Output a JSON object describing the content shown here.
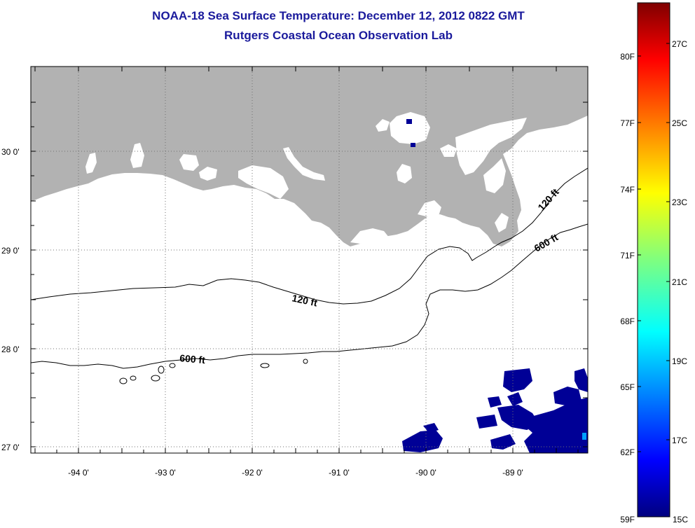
{
  "header": {
    "title": "NOAA-18 Sea Surface Temperature:  December 12, 2012 0822 GMT",
    "subtitle": "Rutgers Coastal Ocean Observation Lab"
  },
  "map": {
    "lon_labels": [
      "-94 0'",
      "-93 0'",
      "-92 0'",
      "-91 0'",
      "-90 0'",
      "-89 0'"
    ],
    "lat_labels": [
      "30 0'",
      "29 0'",
      "28 0'",
      "27 0'"
    ],
    "contour_labels": [
      {
        "id": "label-120ft-west",
        "text": "120 ft"
      },
      {
        "id": "label-600ft-west",
        "text": "600 ft"
      },
      {
        "id": "label-120ft-east",
        "text": "120 ft"
      },
      {
        "id": "label-600ft-east",
        "text": "600 ft"
      }
    ],
    "colors": {
      "land": "#b2b2b2",
      "cold_water": "#000096",
      "contour": "#000000",
      "grid": "#707070"
    }
  },
  "colorbar": {
    "fahrenheit_labels": [
      "80F",
      "77F",
      "74F",
      "71F",
      "68F",
      "65F",
      "62F",
      "59F"
    ],
    "celsius_labels": [
      "27C",
      "25C",
      "23C",
      "21C",
      "19C",
      "17C",
      "15C"
    ],
    "colormap": "jet",
    "range_c": [
      15,
      28
    ],
    "range_f": [
      59,
      82
    ]
  }
}
